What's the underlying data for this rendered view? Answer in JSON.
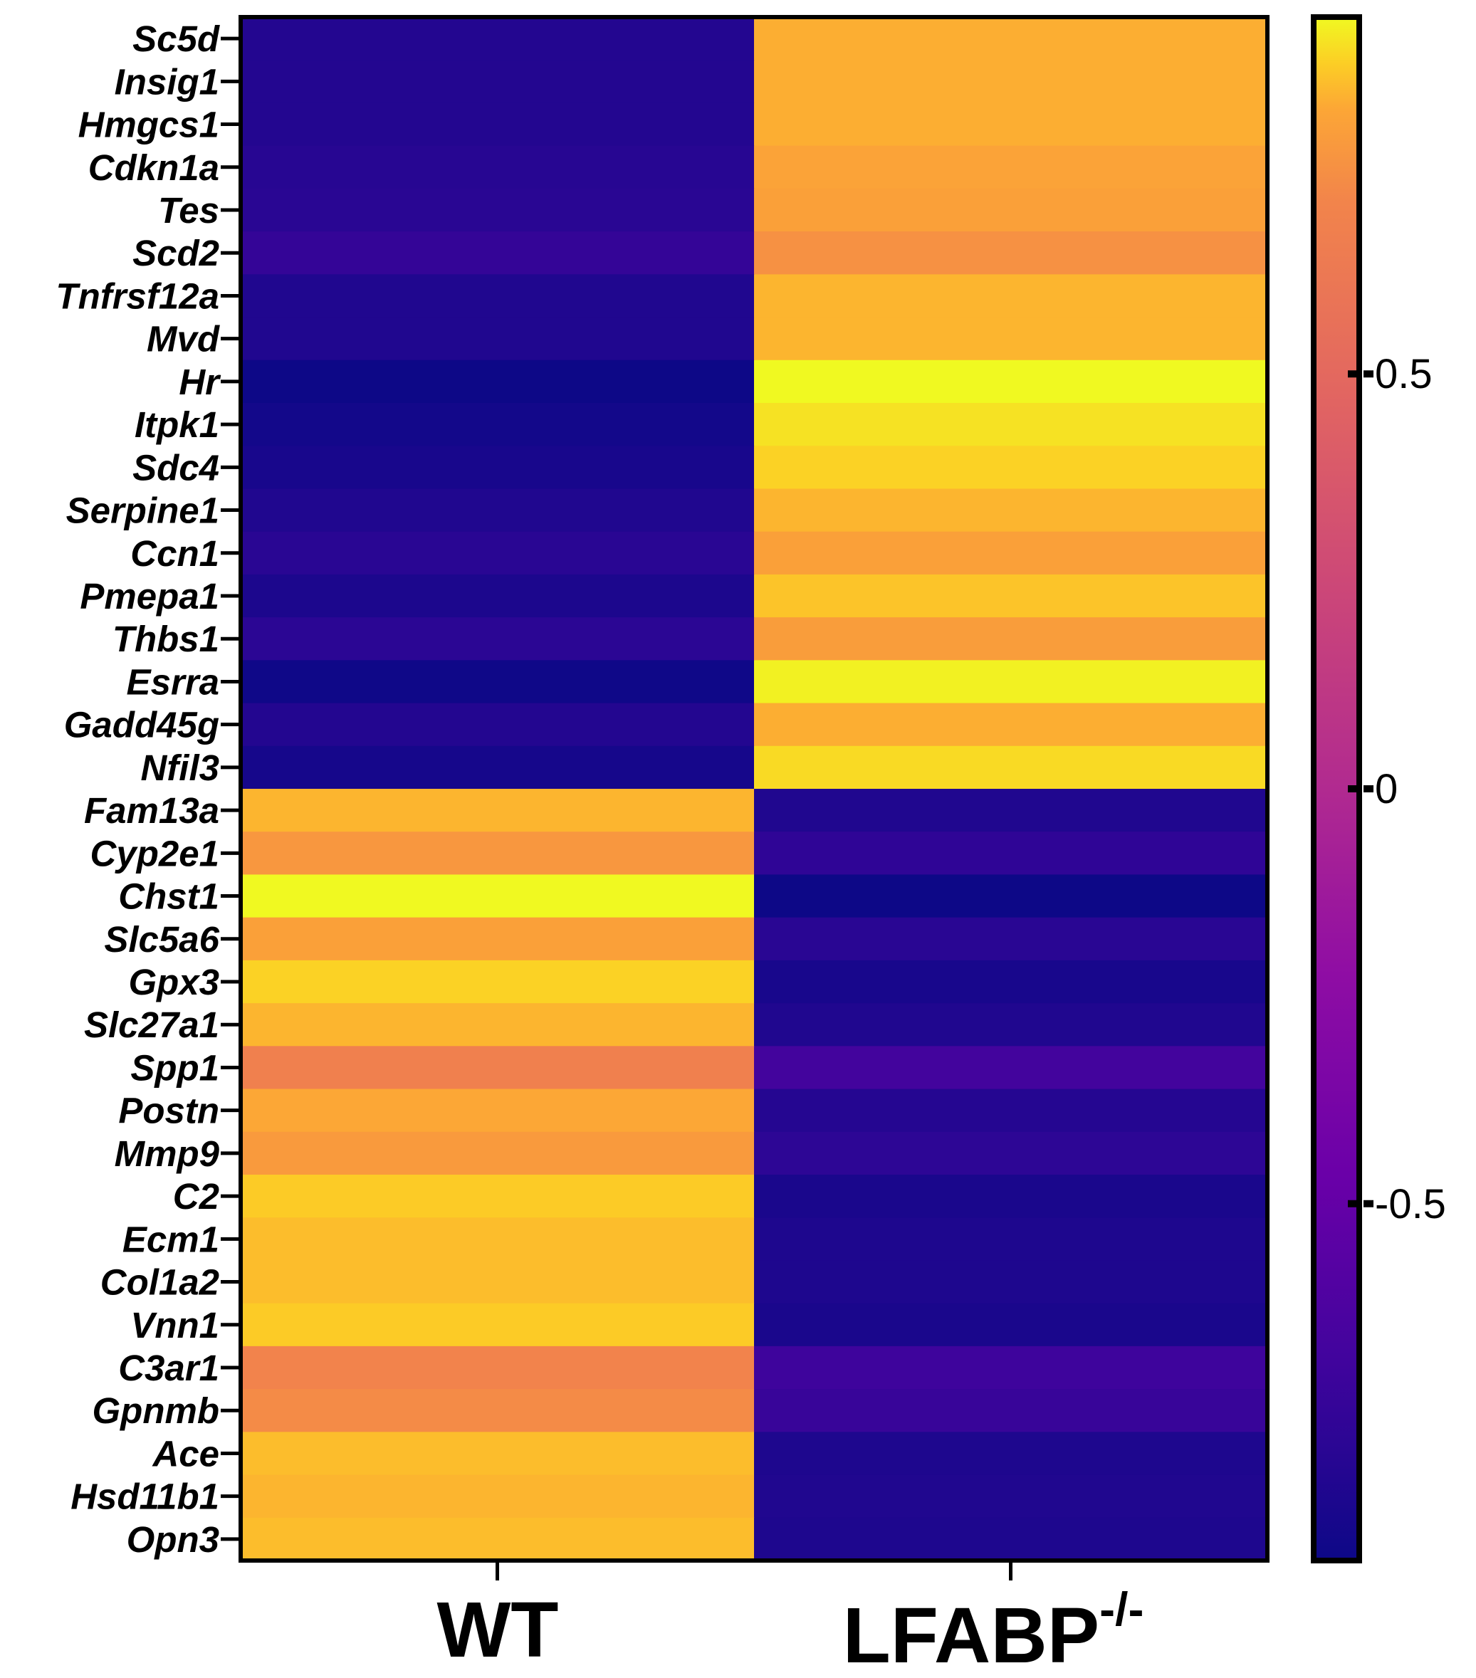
{
  "chart_data": {
    "type": "heatmap",
    "title": "",
    "columns": [
      "WT",
      "LFABP"
    ],
    "column_superscript": [
      "",
      "-/-"
    ],
    "rows": [
      "Sc5d",
      "Insig1",
      "Hmgcs1",
      "Cdkn1a",
      "Tes",
      "Scd2",
      "Tnfrsf12a",
      "Mvd",
      "Hr",
      "Itpk1",
      "Sdc4",
      "Serpine1",
      "Ccn1",
      "Pmepa1",
      "Thbs1",
      "Esrra",
      "Gadd45g",
      "Nfil3",
      "Fam13a",
      "Cyp2e1",
      "Chst1",
      "Slc5a6",
      "Gpx3",
      "Slc27a1",
      "Spp1",
      "Postn",
      "Mmp9",
      "C2",
      "Ecm1",
      "Col1a2",
      "Vnn1",
      "C3ar1",
      "Gpnmb",
      "Ace",
      "Hsd11b1",
      "Opn3"
    ],
    "values": [
      [
        -0.83,
        0.83
      ],
      [
        -0.83,
        0.83
      ],
      [
        -0.83,
        0.83
      ],
      [
        -0.81,
        0.81
      ],
      [
        -0.8,
        0.8
      ],
      [
        -0.75,
        0.75
      ],
      [
        -0.84,
        0.84
      ],
      [
        -0.84,
        0.84
      ],
      [
        -0.94,
        0.94
      ],
      [
        -0.9,
        0.9
      ],
      [
        -0.88,
        0.88
      ],
      [
        -0.84,
        0.84
      ],
      [
        -0.8,
        0.8
      ],
      [
        -0.86,
        0.86
      ],
      [
        -0.79,
        0.79
      ],
      [
        -0.92,
        0.92
      ],
      [
        -0.83,
        0.83
      ],
      [
        -0.89,
        0.89
      ],
      [
        0.84,
        -0.84
      ],
      [
        0.77,
        -0.77
      ],
      [
        0.96,
        -0.96
      ],
      [
        0.8,
        -0.8
      ],
      [
        0.88,
        -0.88
      ],
      [
        0.84,
        -0.84
      ],
      [
        0.68,
        -0.68
      ],
      [
        0.82,
        -0.82
      ],
      [
        0.78,
        -0.78
      ],
      [
        0.87,
        -0.87
      ],
      [
        0.85,
        -0.85
      ],
      [
        0.85,
        -0.85
      ],
      [
        0.87,
        -0.87
      ],
      [
        0.7,
        -0.7
      ],
      [
        0.73,
        -0.73
      ],
      [
        0.85,
        -0.85
      ],
      [
        0.84,
        -0.84
      ],
      [
        0.85,
        -0.85
      ]
    ],
    "color_scale": {
      "name": "plasma",
      "vmin": -0.93,
      "vmax": 0.93,
      "ticks": [
        0.5,
        0,
        -0.5
      ],
      "tick_labels": [
        "0.5",
        "0",
        "-0.5"
      ]
    }
  }
}
